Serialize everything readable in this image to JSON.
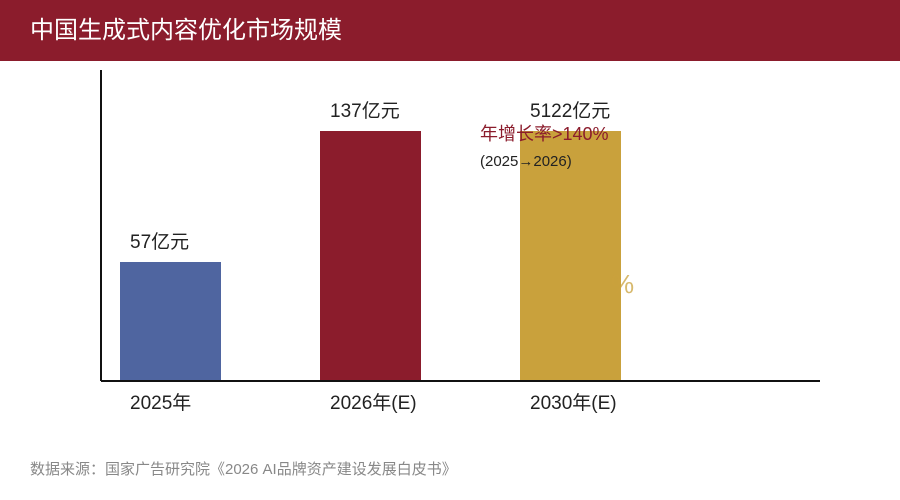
{
  "header": {
    "title": "中国生成式内容优化市场规模"
  },
  "colors": {
    "header_bg": "#8b1c2c",
    "axis": "#111111",
    "label_text": "#222222",
    "annotation_red": "#8b1c2c",
    "annotation_dark": "#222222",
    "source_text": "#888888",
    "faint_glyph": "#c9a13c"
  },
  "chart_data": {
    "type": "bar",
    "categories": [
      "2025年",
      "2026年(E)",
      "2030年(E)"
    ],
    "values": [
      57,
      137,
      5122
    ],
    "data_labels": [
      "57亿元",
      "137亿元",
      "5122亿元"
    ],
    "bar_colors": [
      "#4f65a0",
      "#8b1c2c",
      "#c9a13c"
    ],
    "title": "",
    "xlabel": "",
    "ylabel": "",
    "annotations": [
      {
        "text": "年增长率>140%",
        "color": "#8b1c2c"
      },
      {
        "text": "(2025→2026)",
        "color": "#222222"
      }
    ],
    "faint_text": "%",
    "axis_break_note": "",
    "grid": false,
    "legend": "none"
  },
  "source": {
    "text": "数据来源：国家广告研究院《2026 AI品牌资产建设发展白皮书》"
  }
}
